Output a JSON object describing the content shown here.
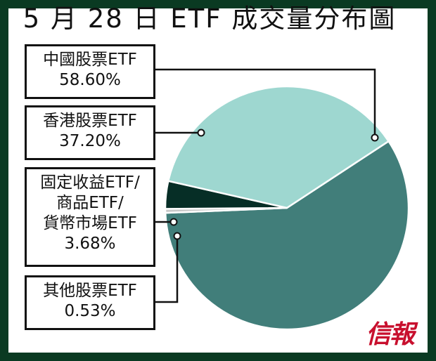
{
  "title": "5 月 28 日 ETF 成交量分布圖",
  "chart_data": {
    "type": "pie",
    "title": "5 月 28 日 ETF 成交量分布圖",
    "slices": [
      {
        "label_lines": [
          "中國股票ETF"
        ],
        "percent_label": "58.60%",
        "value": 58.6,
        "color": "#417e7a"
      },
      {
        "label_lines": [
          "香港股票ETF"
        ],
        "percent_label": "37.20%",
        "value": 37.2,
        "color": "#9ed7d0"
      },
      {
        "label_lines": [
          "固定收益ETF/",
          "商品ETF/",
          "貨幣市場ETF"
        ],
        "percent_label": "3.68%",
        "value": 3.68,
        "color": "#062e26"
      },
      {
        "label_lines": [
          "其他股票ETF"
        ],
        "percent_label": "0.53%",
        "value": 0.53,
        "color": "#c9c9c9"
      }
    ]
  },
  "logo": "信報",
  "colors": {
    "frame": "#0a3a22",
    "logo": "#c8102e"
  }
}
